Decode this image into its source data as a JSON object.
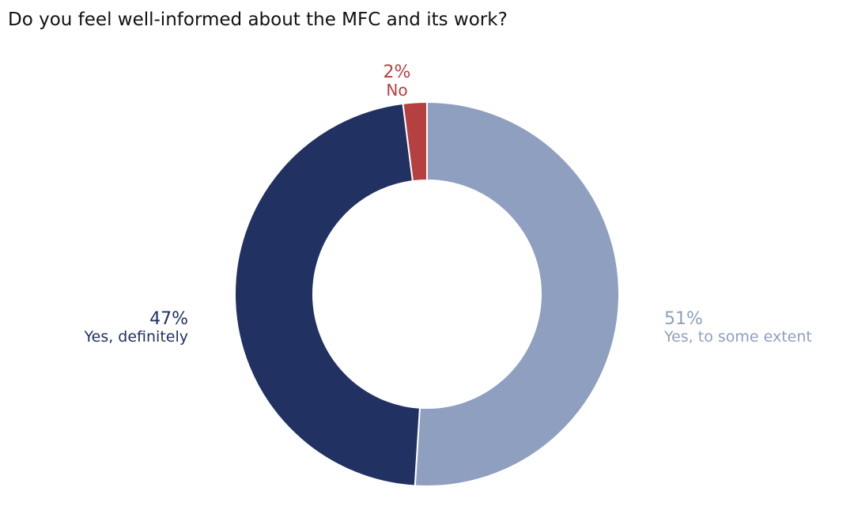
{
  "chart_data": {
    "type": "pie",
    "variant": "donut",
    "title": "Do you feel well-informed about the MFC and its work?",
    "legend": "none",
    "slices": [
      {
        "label": "Yes, to some extent",
        "value": 51,
        "value_label": "51%",
        "color": "#8f9fc0",
        "label_position": "right"
      },
      {
        "label": "Yes, definitely",
        "value": 47,
        "value_label": "47%",
        "color": "#213262",
        "label_position": "left"
      },
      {
        "label": "No",
        "value": 2,
        "value_label": "2%",
        "color": "#b5403f",
        "label_position": "top"
      }
    ]
  }
}
